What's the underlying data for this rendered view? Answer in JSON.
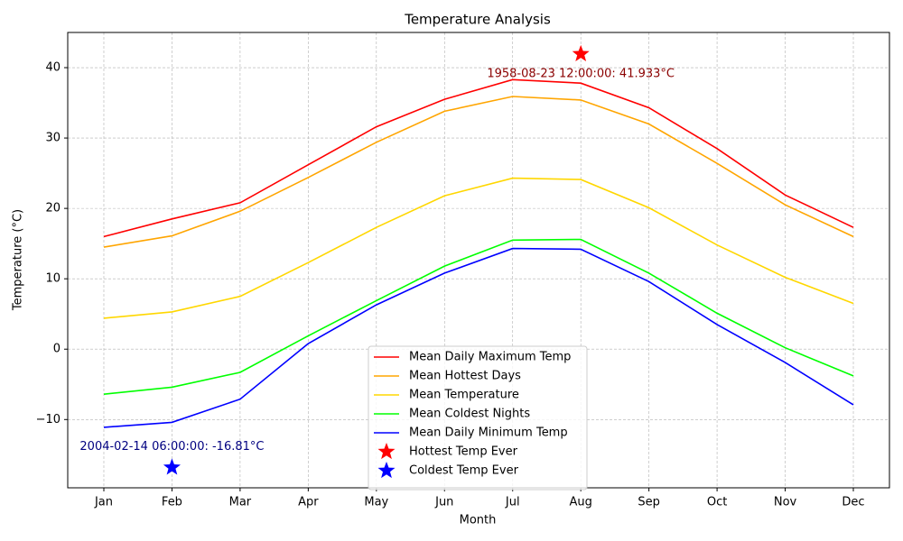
{
  "chart_data": {
    "type": "line",
    "title": "Temperature Analysis",
    "x_label": "Month",
    "y_label": "Temperature (°C)",
    "categories": [
      "Jan",
      "Feb",
      "Mar",
      "Apr",
      "May",
      "Jun",
      "Jul",
      "Aug",
      "Sep",
      "Oct",
      "Nov",
      "Dec"
    ],
    "series": [
      {
        "name": "Mean Daily Maximum Temp",
        "color": "#ff0000",
        "values": [
          16.0,
          18.5,
          20.8,
          26.2,
          31.6,
          35.5,
          38.3,
          37.8,
          34.3,
          28.5,
          21.9,
          17.3
        ]
      },
      {
        "name": "Mean Hottest Days",
        "color": "#ffa500",
        "values": [
          14.5,
          16.1,
          19.6,
          24.4,
          29.4,
          33.8,
          35.9,
          35.4,
          32.0,
          26.4,
          20.5,
          16.0
        ]
      },
      {
        "name": "Mean Temperature",
        "color": "#ffd700",
        "values": [
          4.4,
          5.3,
          7.5,
          12.3,
          17.3,
          21.8,
          24.3,
          24.1,
          20.1,
          14.8,
          10.2,
          6.5
        ]
      },
      {
        "name": "Mean Coldest Nights",
        "color": "#00ff00",
        "values": [
          -6.4,
          -5.4,
          -3.3,
          1.9,
          6.9,
          11.8,
          15.5,
          15.6,
          10.8,
          5.1,
          0.2,
          -3.8
        ]
      },
      {
        "name": "Mean Daily Minimum Temp",
        "color": "#0000ff",
        "values": [
          -11.1,
          -10.4,
          -7.1,
          0.8,
          6.3,
          10.8,
          14.3,
          14.2,
          9.6,
          3.5,
          -1.9,
          -7.9
        ]
      }
    ],
    "markers": [
      {
        "name": "Hottest Temp Ever",
        "color": "#ff0000",
        "category": "Aug",
        "value": 41.933,
        "label": "1958-08-23 12:00:00: 41.933°C",
        "label_color": "#8b0000"
      },
      {
        "name": "Coldest Temp Ever",
        "color": "#0000ff",
        "category": "Feb",
        "value": -16.81,
        "label": "2004-02-14 06:00:00: -16.81°C",
        "label_color": "#000080"
      }
    ],
    "ylim": [
      -19.7,
      45
    ],
    "yticks": [
      {
        "value": -10,
        "label": "−10"
      },
      0,
      10,
      20,
      30,
      40
    ],
    "grid": true,
    "legend_position": "lower center"
  }
}
